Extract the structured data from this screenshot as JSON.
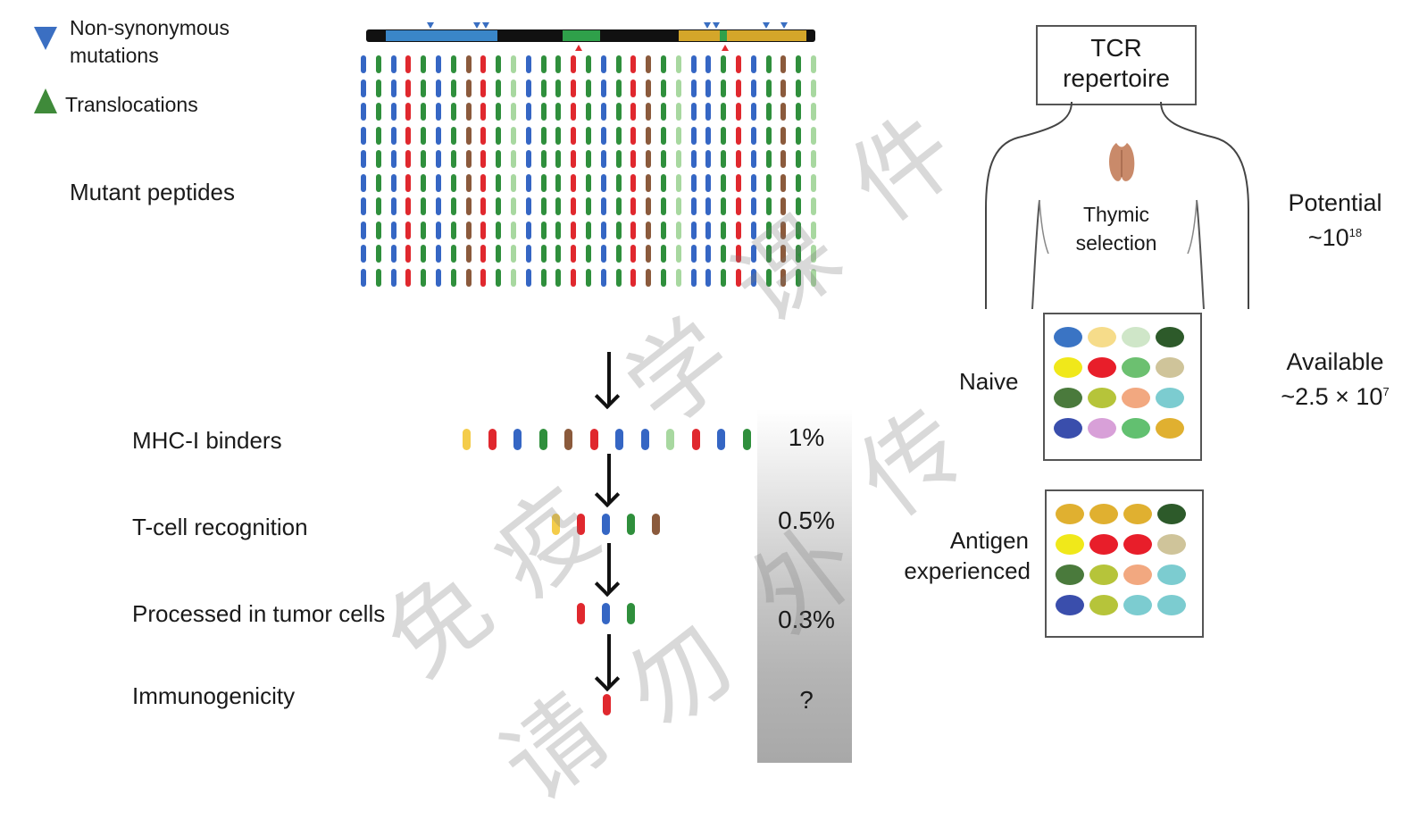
{
  "legend": {
    "nonsyn_line1": "Non-synonymous",
    "nonsyn_line2": "mutations",
    "translocations": "Translocations"
  },
  "labels": {
    "mutant_peptides": "Mutant peptides",
    "mhc_binders": "MHC-I binders",
    "tcell_recognition": "T-cell recognition",
    "processed": "Processed in tumor cells",
    "immunogenicity": "Immunogenicity"
  },
  "percentages": {
    "mhc": "1%",
    "tcell": "0.5%",
    "processed": "0.3%",
    "immuno": "?"
  },
  "tcr": {
    "line1": "TCR",
    "line2": "repertoire",
    "thymic1": "Thymic",
    "thymic2": "selection",
    "naive": "Naive",
    "antigen1": "Antigen",
    "antigen2": "experienced",
    "potential": "Potential",
    "potential_val": "~10",
    "potential_exp": "18",
    "available": "Available",
    "available_val": "~2.5 × 10",
    "available_exp": "7"
  },
  "watermark": [
    "免",
    "疫",
    "学",
    "课",
    "件",
    "请",
    "勿",
    "外",
    "传"
  ],
  "colors": {
    "blue": "#3566c4",
    "green": "#2f8f3c",
    "red": "#e0282e",
    "brown": "#8b5a3c",
    "lightgreen": "#a8d8a0",
    "yellow": "#f4cc4a",
    "legend_blue": "#3b6fc2",
    "legend_green": "#3f8a3a",
    "gene_blue": "#3a86c8",
    "gene_green": "#2fa04a",
    "gene_gold": "#d4a62a"
  },
  "peptide_pattern": [
    "blue",
    "green",
    "blue",
    "red",
    "green",
    "blue",
    "green",
    "brown",
    "red",
    "green",
    "lightgreen",
    "blue",
    "green",
    "green",
    "red",
    "green",
    "blue",
    "green",
    "red",
    "brown",
    "green",
    "lightgreen",
    "blue",
    "blue",
    "green",
    "red",
    "blue",
    "green",
    "brown",
    "green",
    "lightgreen"
  ],
  "mhc_binders_pattern": [
    "yellow",
    "red",
    "blue",
    "green",
    "brown",
    "red",
    "blue",
    "blue",
    "lightgreen",
    "red",
    "blue",
    "green"
  ],
  "tcell_pattern": [
    "yellow",
    "red",
    "blue",
    "green",
    "brown"
  ],
  "processed_pattern": [
    "red",
    "blue",
    "green"
  ],
  "immuno_pattern": [
    "red"
  ],
  "naive_grid": [
    "#3a74c4",
    "#f6dc8a",
    "#cfe6c8",
    "#2d5a2a",
    "#f0e81a",
    "#e81e2a",
    "#6cc070",
    "#cfc49a",
    "#4a7a3c",
    "#b6c43a",
    "#f2a880",
    "#7cccd0",
    "#3a4eac",
    "#d8a0d8",
    "#62c070",
    "#e0b030"
  ],
  "antigen_grid": [
    "#e0b030",
    "#e0b030",
    "#e0b030",
    "#2d5a2a",
    "#f0e81a",
    "#e81e2a",
    "#e81e2a",
    "#cfc49a",
    "#4a7a3c",
    "#b6c43a",
    "#f2a880",
    "#7cccd0",
    "#3a4eac",
    "#b6c43a",
    "#7cccd0",
    "#7cccd0"
  ]
}
